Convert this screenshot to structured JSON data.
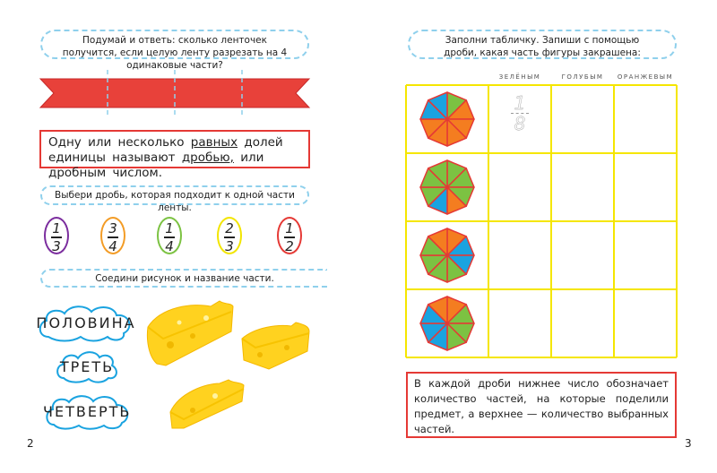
{
  "left_page": {
    "task1": "Подумай и ответь: сколько ленточек получится, если целую ленту разрезать на 4 одинаковые части?",
    "definition": {
      "part1": "Одну или несколько ",
      "u1": "равных",
      "part2": " долей единицы называют ",
      "u2": "дробью,",
      "part3": " или дробным числом."
    },
    "task2": "Выбери дробь, которая подходит к одной части ленты.",
    "fractions": [
      {
        "num": "1",
        "den": "3",
        "color": "#7b2d9e"
      },
      {
        "num": "3",
        "den": "4",
        "color": "#f39c26"
      },
      {
        "num": "1",
        "den": "4",
        "color": "#7cc242"
      },
      {
        "num": "2",
        "den": "3",
        "color": "#f2e500"
      },
      {
        "num": "1",
        "den": "2",
        "color": "#e53935"
      }
    ],
    "task3": "Соедини рисунок и название части.",
    "words": [
      "ПОЛОВИНА",
      "ТРЕТЬ",
      "ЧЕТВЕРТЬ"
    ],
    "page_number": "2"
  },
  "right_page": {
    "task": "Заполни табличку. Запиши с помощью дроби, какая часть фигуры закрашена:",
    "columns": [
      "ЗЕЛЁНЫМ",
      "ГОЛУБЫМ",
      "ОРАНЖЕВЫМ"
    ],
    "example": {
      "num": "1",
      "den": "8"
    },
    "octagons": [
      [
        "green",
        "orange",
        "orange",
        "orange",
        "orange",
        "orange",
        "blue",
        "blue"
      ],
      [
        "green",
        "green",
        "green",
        "orange",
        "blue",
        "green",
        "green",
        "green"
      ],
      [
        "orange",
        "blue",
        "blue",
        "green",
        "green",
        "green",
        "green",
        "orange"
      ],
      [
        "orange",
        "green",
        "green",
        "green",
        "blue",
        "blue",
        "blue",
        "orange"
      ]
    ],
    "note": "В каждой дроби нижнее число обозначает количество частей, на которые поделили предмет, а верхнее — количество выбранных частей.",
    "page_number": "3"
  },
  "colors": {
    "green": "#7cc242",
    "blue": "#1aa3e0",
    "orange": "#f47d20",
    "red": "#e53935",
    "yellow_grid": "#f5e600",
    "dash": "#8fd0ec"
  }
}
